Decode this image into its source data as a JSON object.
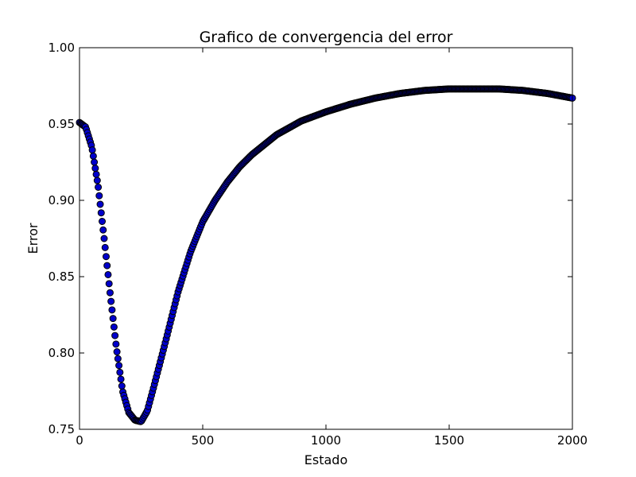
{
  "chart_data": {
    "type": "scatter",
    "title": "Grafico de convergencia del error",
    "xlabel": "Estado",
    "ylabel": "Error",
    "xlim": [
      0,
      2000
    ],
    "ylim": [
      0.75,
      1.0
    ],
    "xticks": [
      0,
      500,
      1000,
      1500,
      2000
    ],
    "xtick_labels": [
      "0",
      "500",
      "1000",
      "1500",
      "2000"
    ],
    "yticks": [
      0.75,
      0.8,
      0.85,
      0.9,
      0.95,
      1.0
    ],
    "ytick_labels": [
      "0.75",
      "0.80",
      "0.85",
      "0.90",
      "0.95",
      "1.00"
    ],
    "grid": false,
    "marker_color": "#0000cc",
    "marker_edge_color": "#000000",
    "series": [
      {
        "x": [
          0,
          25,
          50,
          75,
          100,
          125,
          150,
          175,
          200,
          225,
          250,
          275,
          300,
          350,
          400,
          450,
          500,
          550,
          600,
          650,
          700,
          800,
          900,
          1000,
          1100,
          1200,
          1300,
          1400,
          1500,
          1600,
          1700,
          1800,
          1900,
          2000
        ],
        "values": [
          0.951,
          0.948,
          0.935,
          0.91,
          0.875,
          0.838,
          0.803,
          0.775,
          0.761,
          0.756,
          0.755,
          0.762,
          0.777,
          0.808,
          0.84,
          0.866,
          0.886,
          0.9,
          0.912,
          0.922,
          0.93,
          0.943,
          0.952,
          0.958,
          0.963,
          0.967,
          0.97,
          0.972,
          0.973,
          0.973,
          0.973,
          0.972,
          0.97,
          0.967
        ]
      }
    ]
  }
}
